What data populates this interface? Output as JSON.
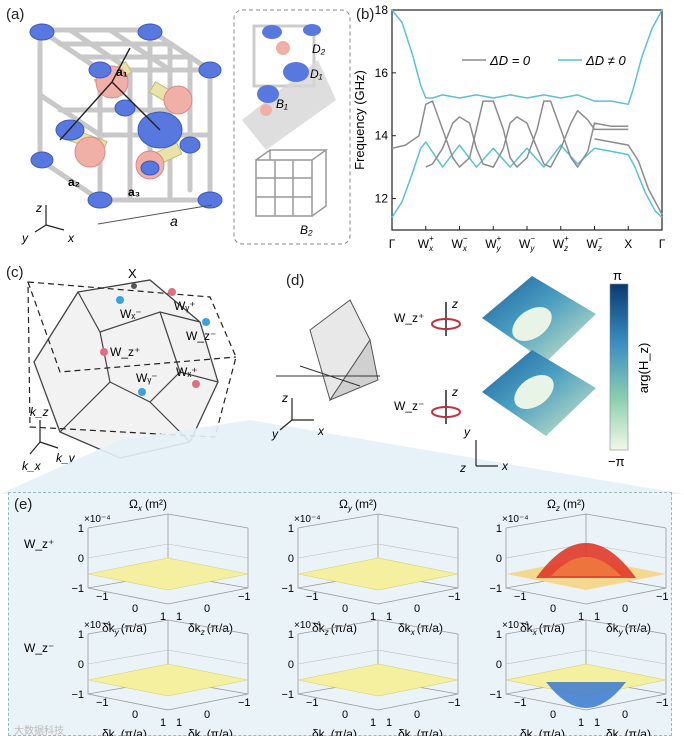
{
  "panels": {
    "a": "(a)",
    "b": "(b)",
    "c": "(c)",
    "d": "(d)",
    "e": "(e)"
  },
  "panel_a": {
    "vec_a1": "a₁",
    "vec_a2": "a₂",
    "vec_a3": "a₃",
    "lattice_a": "a",
    "axis_z": "z",
    "axis_y": "y",
    "axis_x": "x",
    "label_D2": "D₂",
    "label_D1": "D₁",
    "label_B1": "B₁",
    "label_B2": "B₂"
  },
  "chart_data": {
    "type": "line",
    "ylabel": "Frequency (GHz)",
    "ylim": [
      11,
      18
    ],
    "yticks": [
      12,
      14,
      16,
      18
    ],
    "xticks": [
      "Γ",
      "Wₓ⁺",
      "Wₓ⁻",
      "Wᵧ⁺",
      "Wᵧ⁻",
      "W_z⁺",
      "W_z⁻",
      "X",
      "Γ"
    ],
    "xtick_main": [
      "Γ",
      "W",
      "W",
      "W",
      "W",
      "W",
      "W",
      "X",
      "Γ"
    ],
    "xtick_sub": [
      "",
      "x",
      "x",
      "y",
      "y",
      "z",
      "z",
      "",
      ""
    ],
    "xtick_sup": [
      "",
      "+",
      "−",
      "+",
      "−",
      "+",
      "−",
      "",
      ""
    ],
    "legend": [
      {
        "name": "ΔD = 0",
        "color": "#8c8c8c"
      },
      {
        "name": "ΔD ≠ 0",
        "color": "#5bc0d8"
      }
    ],
    "legend_placement": "top-center",
    "series": [
      {
        "name": "ΔD ≠ 0",
        "color": "#5bc0d8",
        "x": [
          0,
          0.3,
          0.6,
          0.85,
          1.0,
          1.2,
          1.5,
          2.0,
          2.5,
          3.0,
          3.5,
          4.0,
          4.5,
          5.0,
          5.5,
          6.0,
          6.5,
          7.0,
          7.15,
          7.4,
          7.7,
          8.0
        ],
        "y": [
          18.0,
          17.6,
          16.6,
          15.6,
          15.2,
          15.2,
          15.3,
          15.2,
          15.3,
          15.2,
          15.3,
          15.2,
          15.3,
          15.2,
          15.3,
          15.1,
          15.1,
          15.0,
          15.5,
          16.5,
          17.4,
          18.0
        ]
      },
      {
        "name": "ΔD ≠ 0 lower",
        "color": "#5bc0d8",
        "x": [
          0,
          0.3,
          0.6,
          0.85,
          1.0,
          1.5,
          2.0,
          2.5,
          3.0,
          3.5,
          4.0,
          4.5,
          5.0,
          5.5,
          6.0,
          6.5,
          7.0,
          7.2,
          7.5,
          7.8,
          8.0
        ],
        "y": [
          11.4,
          11.9,
          12.8,
          13.6,
          13.8,
          13.0,
          13.7,
          13.0,
          13.6,
          13.0,
          13.6,
          13.0,
          13.7,
          13.1,
          13.6,
          13.5,
          13.4,
          13.0,
          12.2,
          11.6,
          11.4
        ]
      },
      {
        "name": "ΔD = 0 a",
        "color": "#8c8c8c",
        "x": [
          0,
          0.4,
          0.8,
          1.0,
          1.2,
          1.5,
          1.8,
          2.0,
          2.3,
          2.5,
          2.7,
          3.0,
          3.3,
          3.5,
          3.7,
          4.0,
          4.3,
          4.5,
          4.7,
          5.0,
          5.3,
          5.5,
          5.8,
          6.0,
          6.5,
          7.0
        ],
        "y": [
          13.6,
          13.7,
          14.0,
          15.0,
          15.1,
          14.2,
          13.3,
          13.0,
          13.3,
          14.2,
          15.1,
          15.1,
          14.2,
          13.3,
          13.0,
          13.3,
          14.2,
          15.1,
          15.1,
          14.2,
          13.3,
          13.0,
          13.5,
          14.4,
          14.3,
          14.3
        ]
      },
      {
        "name": "ΔD = 0 b",
        "color": "#8c8c8c",
        "x": [
          1.0,
          1.2,
          1.5,
          1.8,
          2.0,
          2.3,
          2.5,
          2.7,
          3.0,
          3.3,
          3.5,
          3.7,
          4.0,
          4.3,
          4.5,
          4.7,
          5.0,
          5.3,
          5.5,
          5.8,
          6.0,
          6.5,
          7.0
        ],
        "y": [
          13.0,
          13.1,
          13.6,
          14.4,
          14.6,
          14.4,
          13.6,
          13.1,
          13.0,
          13.6,
          14.4,
          14.6,
          14.4,
          13.6,
          13.1,
          13.0,
          13.6,
          14.4,
          14.8,
          14.5,
          14.2,
          14.2,
          14.2
        ]
      },
      {
        "name": "ΔD = 0 c",
        "color": "#8c8c8c",
        "x": [
          6.0,
          6.5,
          7.0,
          7.3,
          7.6,
          8.0
        ],
        "y": [
          13.9,
          13.8,
          13.7,
          13.2,
          12.3,
          11.5
        ]
      }
    ]
  },
  "panel_c": {
    "X": "X",
    "Wx_minus": "Wₓ⁻",
    "Wy_plus": "Wᵧ⁺",
    "Wz_minus": "W_z⁻",
    "Wz_plus": "W_z⁺",
    "Wy_minus": "Wᵧ⁻",
    "Wx_plus": "Wₓ⁺",
    "kz": "k_z",
    "kx": "k_x",
    "ky": "k_y"
  },
  "panel_d": {
    "Wz_plus": "W_z⁺",
    "Wz_minus": "W_z⁻",
    "axis_z": "z",
    "axis_y": "y",
    "axis_x": "x",
    "colorbar_top": "π",
    "colorbar_bottom": "−π",
    "colorbar_label": "arg(H_z)"
  },
  "panel_e": {
    "columns": [
      "Ωₓ (m²)",
      "Ωᵧ (m²)",
      "Ω_z (m²)"
    ],
    "col_main": [
      "Ω",
      "Ω",
      "Ω"
    ],
    "col_sub": [
      "x",
      "y",
      "z"
    ],
    "col_unit": [
      "(m²)",
      "(m²)",
      "(m²)"
    ],
    "rows": [
      "W_z⁺",
      "W_z⁻"
    ],
    "scale": "×10⁻⁴",
    "ztick_top": "1",
    "ztick_mid": "0",
    "ztick_bot": "−1",
    "axis_left": [
      "δkᵧ (π/a)",
      "δk_z (π/a)",
      "δkₓ (π/a)"
    ],
    "axis_right": [
      "δk_z (π/a)",
      "δkₓ (π/a)",
      "δkᵧ (π/a)"
    ],
    "axis_left_sub": [
      "y",
      "z",
      "x"
    ],
    "axis_right_sub": [
      "z",
      "x",
      "y"
    ],
    "tick_m1": "−1",
    "tick_0": "0",
    "tick_1": "1"
  },
  "watermark": "大数据科技"
}
